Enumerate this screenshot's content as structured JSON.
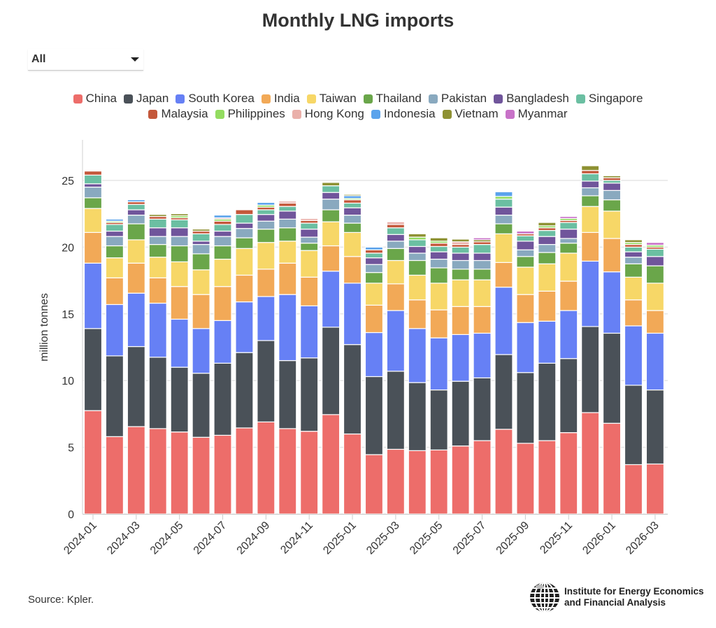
{
  "title": "Monthly LNG imports",
  "filter": {
    "selected": "All"
  },
  "source": "Source: Kpler.",
  "logo": {
    "line1": "Institute for Energy Economics",
    "line2": "and Financial Analysis"
  },
  "chart_data": {
    "type": "bar",
    "stacked": true,
    "title": "Monthly LNG imports",
    "xlabel": "",
    "ylabel": "million tonnes",
    "ylim": [
      0,
      27.5
    ],
    "yticks": [
      0,
      5,
      10,
      15,
      20,
      25
    ],
    "grid": true,
    "legend_position": "top",
    "categories": [
      "2024-01",
      "2024-02",
      "2024-03",
      "2024-04",
      "2024-05",
      "2024-06",
      "2024-07",
      "2024-08",
      "2024-09",
      "2024-10",
      "2024-11",
      "2024-12",
      "2025-01",
      "2025-02",
      "2025-03",
      "2025-04",
      "2025-05",
      "2025-06",
      "2025-07",
      "2025-08",
      "2025-09",
      "2025-10",
      "2025-11",
      "2025-12",
      "2026-01",
      "2026-02",
      "2026-03"
    ],
    "xtick_labels": [
      "2024-01",
      "2024-03",
      "2024-05",
      "2024-07",
      "2024-09",
      "2024-11",
      "2025-01",
      "2025-03",
      "2025-05",
      "2025-07",
      "2025-09",
      "2025-11",
      "2026-01",
      "2026-03"
    ],
    "series": [
      {
        "name": "China",
        "color": "#ed6d6a",
        "values": [
          7.75,
          5.8,
          6.55,
          6.4,
          6.15,
          5.75,
          5.9,
          6.45,
          6.9,
          6.4,
          6.2,
          7.45,
          6.0,
          4.45,
          4.85,
          4.75,
          4.8,
          5.1,
          5.5,
          6.35,
          5.3,
          5.5,
          6.1,
          7.6,
          6.8,
          3.7,
          3.75
        ]
      },
      {
        "name": "Japan",
        "color": "#4a5158",
        "values": [
          6.15,
          6.05,
          6.0,
          5.35,
          4.85,
          4.8,
          5.4,
          5.65,
          6.1,
          5.1,
          5.5,
          6.55,
          6.7,
          5.85,
          5.85,
          5.1,
          4.5,
          4.85,
          4.7,
          5.6,
          5.3,
          5.8,
          5.55,
          6.45,
          6.75,
          5.95,
          5.55
        ]
      },
      {
        "name": "South Korea",
        "color": "#6680f5",
        "values": [
          4.9,
          3.85,
          4.0,
          4.05,
          3.6,
          3.35,
          3.2,
          3.8,
          3.3,
          4.95,
          3.9,
          4.2,
          4.6,
          3.3,
          4.55,
          4.05,
          3.9,
          3.5,
          3.35,
          5.05,
          3.75,
          3.15,
          3.6,
          4.9,
          4.6,
          4.45,
          4.25
        ]
      },
      {
        "name": "India",
        "color": "#f2a957",
        "values": [
          2.3,
          2.0,
          2.25,
          1.9,
          2.45,
          2.55,
          2.55,
          2.0,
          2.05,
          2.35,
          2.15,
          1.9,
          2.0,
          2.05,
          2.0,
          2.15,
          2.1,
          2.1,
          2.0,
          1.85,
          2.1,
          2.25,
          2.2,
          2.15,
          2.5,
          1.95,
          1.7
        ]
      },
      {
        "name": "Taiwan",
        "color": "#f7d767",
        "values": [
          1.8,
          1.5,
          1.75,
          1.55,
          1.85,
          1.85,
          2.05,
          2.0,
          2.0,
          1.65,
          2.0,
          1.8,
          1.8,
          1.65,
          1.75,
          1.85,
          2.0,
          2.0,
          2.0,
          2.15,
          2.05,
          2.05,
          2.1,
          1.95,
          2.05,
          1.7,
          2.05
        ]
      },
      {
        "name": "Thailand",
        "color": "#6aa64a",
        "values": [
          0.8,
          0.9,
          1.2,
          0.95,
          1.2,
          1.2,
          1.0,
          0.8,
          1.0,
          1.0,
          0.55,
          0.9,
          0.7,
          0.8,
          0.9,
          1.1,
          1.15,
          0.8,
          0.8,
          0.75,
          0.8,
          0.85,
          0.75,
          0.8,
          0.85,
          1.0,
          1.3
        ]
      },
      {
        "name": "Pakistan",
        "color": "#89a9bf",
        "values": [
          0.8,
          0.7,
          0.65,
          0.6,
          0.7,
          0.7,
          0.7,
          0.7,
          0.6,
          0.65,
          0.45,
          0.8,
          0.6,
          0.6,
          0.55,
          0.55,
          0.65,
          0.65,
          0.65,
          0.65,
          0.5,
          0.6,
          0.35,
          0.6,
          0.7,
          0.5,
          0
        ]
      },
      {
        "name": "Bangladesh",
        "color": "#70559b",
        "values": [
          0.25,
          0.4,
          0.4,
          0.65,
          0.65,
          0.25,
          0.4,
          0.4,
          0.5,
          0.6,
          0.6,
          0.5,
          0.55,
          0.5,
          0.5,
          0.5,
          0.55,
          0.55,
          0.55,
          0.6,
          0.65,
          0.6,
          0.7,
          0.5,
          0.55,
          0.4,
          0.7
        ]
      },
      {
        "name": "Singapore",
        "color": "#6bbfa2",
        "values": [
          0.65,
          0.5,
          0.4,
          0.65,
          0.6,
          0.55,
          0.5,
          0.65,
          0.35,
          0.35,
          0.45,
          0.5,
          0.35,
          0.35,
          0.5,
          0.5,
          0.4,
          0.45,
          0.65,
          0.6,
          0.4,
          0.45,
          0.5,
          0.55,
          0.2,
          0.35,
          0.55
        ]
      },
      {
        "name": "Malaysia",
        "color": "#c4583b",
        "values": [
          0.3,
          0.15,
          0.2,
          0.2,
          0.15,
          0.2,
          0.25,
          0.35,
          0.2,
          0.25,
          0.2,
          0,
          0.25,
          0.25,
          0.25,
          0,
          0.25,
          0.2,
          0.2,
          0,
          0.15,
          0.2,
          0.15,
          0.25,
          0.2,
          0.2,
          0.15
        ]
      },
      {
        "name": "Philippines",
        "color": "#93dc60",
        "values": [
          0,
          0.1,
          0,
          0,
          0.15,
          0,
          0.15,
          0,
          0.15,
          0,
          0,
          0,
          0.1,
          0,
          0,
          0.2,
          0.15,
          0,
          0,
          0.2,
          0,
          0.15,
          0.15,
          0,
          0,
          0.15,
          0.15
        ]
      },
      {
        "name": "Hong Kong",
        "color": "#eab0aa",
        "values": [
          0,
          0,
          0,
          0,
          0,
          0,
          0.1,
          0,
          0,
          0.15,
          0.15,
          0,
          0,
          0,
          0.2,
          0,
          0,
          0.2,
          0,
          0,
          0,
          0,
          0,
          0,
          0,
          0,
          0
        ]
      },
      {
        "name": "Indonesia",
        "color": "#5ba3ec",
        "values": [
          0,
          0.15,
          0.15,
          0,
          0,
          0,
          0.2,
          0,
          0.2,
          0,
          0,
          0,
          0.2,
          0.2,
          0,
          0,
          0,
          0,
          0,
          0.35,
          0,
          0,
          0,
          0,
          0,
          0,
          0
        ]
      },
      {
        "name": "Vietnam",
        "color": "#8e9133",
        "values": [
          0,
          0,
          0,
          0.15,
          0.15,
          0.15,
          0,
          0,
          0,
          0,
          0,
          0.25,
          0.1,
          0,
          0,
          0.25,
          0.25,
          0.2,
          0.15,
          0,
          0,
          0.25,
          0,
          0.35,
          0.15,
          0.2,
          0
        ]
      },
      {
        "name": "Myanmar",
        "color": "#c872c8",
        "values": [
          0,
          0,
          0,
          0,
          0,
          0,
          0,
          0,
          0,
          0,
          0,
          0,
          0,
          0,
          0,
          0,
          0,
          0,
          0.15,
          0,
          0.2,
          0,
          0.15,
          0,
          0,
          0,
          0.2
        ]
      }
    ]
  }
}
